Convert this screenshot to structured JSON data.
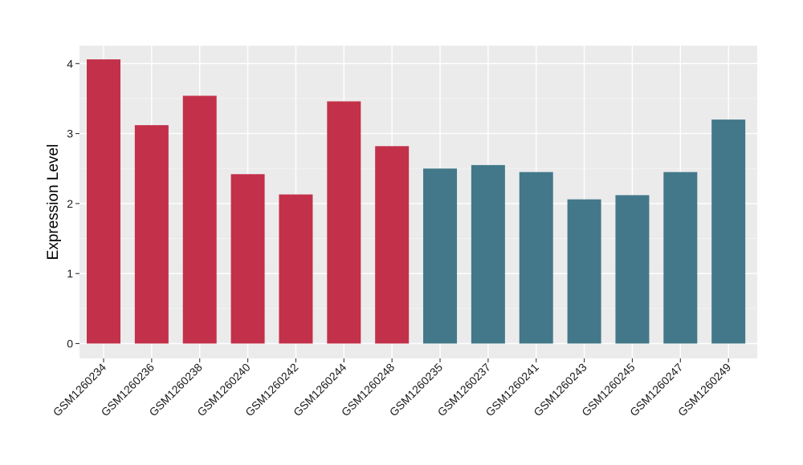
{
  "chart_data": {
    "type": "bar",
    "title": "",
    "xlabel": "",
    "ylabel": "Expression Level",
    "ylim": [
      0,
      4.2
    ],
    "yticks": [
      0,
      1,
      2,
      3,
      4
    ],
    "grid": true,
    "background": "#EBEBEB",
    "categories": [
      "GSM1260234",
      "GSM1260236",
      "GSM1260238",
      "GSM1260240",
      "GSM1260242",
      "GSM1260244",
      "GSM1260248",
      "GSM1260235",
      "GSM1260237",
      "GSM1260241",
      "GSM1260243",
      "GSM1260245",
      "GSM1260247",
      "GSM1260249"
    ],
    "values": [
      4.06,
      3.12,
      3.54,
      2.42,
      2.13,
      3.46,
      2.82,
      2.5,
      2.55,
      2.45,
      2.06,
      2.12,
      2.45,
      3.2
    ],
    "bar_colors": [
      "#C3304A",
      "#C3304A",
      "#C3304A",
      "#C3304A",
      "#C3304A",
      "#C3304A",
      "#C3304A",
      "#42788A",
      "#42788A",
      "#42788A",
      "#42788A",
      "#42788A",
      "#42788A",
      "#42788A"
    ]
  }
}
